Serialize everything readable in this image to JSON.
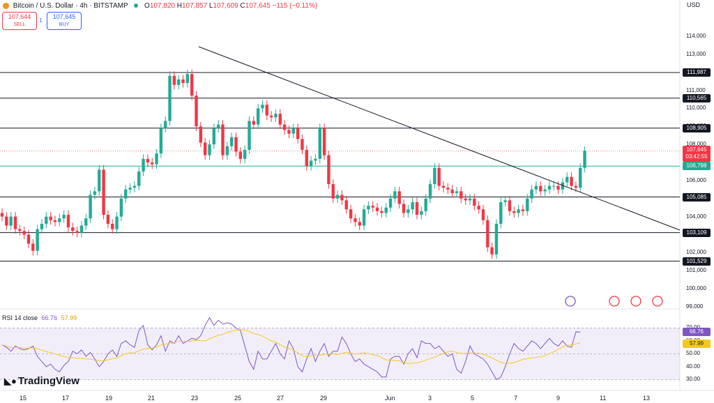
{
  "header": {
    "symbol": "Bitcoin / U.S. Dollar · 4h · BITSTAMP",
    "open_label": "O",
    "open": "107,820",
    "high_label": "H",
    "high": "107,857",
    "low_label": "L",
    "low": "107,609",
    "close_label": "C",
    "close": "107,645",
    "change": "−115 (−0.11%)",
    "currency": "USD"
  },
  "trade": {
    "sell_price": "107,644",
    "sell_label": "SELL",
    "buy_price": "107,645",
    "buy_label": "BUY",
    "spread": "1"
  },
  "rsi": {
    "label": "RSI 14 close",
    "value": "66.76",
    "ma_value": "57.99",
    "current": 66.76,
    "ma": 57.99
  },
  "branding": {
    "logo_text": "TradingView"
  },
  "colors": {
    "up": "#22ab94",
    "down": "#f23645",
    "rsi_line": "#7e57c2",
    "rsi_ma": "#f7c81b",
    "accent": "#2962ff",
    "support_tag": "#22ab94"
  },
  "icons": [
    "bitcoin-icon",
    "market-open-icon",
    "event-icons"
  ],
  "chart_data": {
    "type": "candlestick",
    "symbol": "BTCUSD",
    "timeframe": "4h",
    "ylim": [
      99000,
      115000
    ],
    "y_ticks": [
      {
        "v": 114000,
        "label": "114,000"
      },
      {
        "v": 113000,
        "label": "113,000"
      },
      {
        "v": 112000,
        "label": "112,000"
      },
      {
        "v": 111000,
        "label": "111,000"
      },
      {
        "v": 110000,
        "label": "110,000"
      },
      {
        "v": 109000,
        "label": "109,000"
      },
      {
        "v": 108000,
        "label": "108,000"
      },
      {
        "v": 107000,
        "label": "107,000"
      },
      {
        "v": 106000,
        "label": "106,000"
      },
      {
        "v": 105000,
        "label": "105,000"
      },
      {
        "v": 104000,
        "label": "104,000"
      },
      {
        "v": 103000,
        "label": "103,000"
      },
      {
        "v": 102000,
        "label": "102,000"
      },
      {
        "v": 101000,
        "label": "101,000"
      },
      {
        "v": 100000,
        "label": "100,000"
      },
      {
        "v": 99000,
        "label": "99,000"
      }
    ],
    "x_ticks": [
      "15",
      "17",
      "19",
      "21",
      "23",
      "25",
      "27",
      "29",
      "Jun",
      "3",
      "5",
      "7",
      "9",
      "11",
      "13"
    ],
    "levels": [
      {
        "v": 111987,
        "label": "111,987"
      },
      {
        "v": 110565,
        "label": "110,565"
      },
      {
        "v": 108905,
        "label": "108,905"
      },
      {
        "v": 105085,
        "label": "105,085"
      },
      {
        "v": 103109,
        "label": "103,109"
      },
      {
        "v": 101529,
        "label": "101,529"
      }
    ],
    "support_level": {
      "v": 106798,
      "label": "106,798"
    },
    "last_price": {
      "v": 107645,
      "label": "107,645",
      "countdown": "03:42:55"
    },
    "trendline": [
      [
        "May 22",
        112700
      ],
      [
        "Jun 12",
        103100
      ]
    ],
    "candles_close": [
      104000,
      103500,
      104000,
      103300,
      103200,
      103000,
      102500,
      102100,
      103300,
      103600,
      104000,
      103800,
      103700,
      103900,
      104100,
      103400,
      103200,
      103100,
      103500,
      103900,
      105200,
      105400,
      106600,
      104100,
      103600,
      103300,
      104000,
      105000,
      105500,
      105600,
      105700,
      106500,
      107200,
      107000,
      106900,
      107500,
      108900,
      109300,
      111800,
      111300,
      111600,
      111400,
      111900,
      110700,
      109000,
      108100,
      107400,
      108000,
      108900,
      109100,
      107400,
      107900,
      108400,
      107600,
      107200,
      107700,
      109300,
      109100,
      110000,
      110200,
      109600,
      109500,
      109700,
      109100,
      108800,
      108600,
      108900,
      108300,
      107700,
      106800,
      107100,
      107200,
      108900,
      107400,
      105800,
      105000,
      105200,
      104900,
      104400,
      103900,
      103700,
      103500,
      104400,
      104600,
      104500,
      104300,
      104200,
      104500,
      105000,
      105400,
      104700,
      104200,
      104400,
      104800,
      104100,
      104300,
      105000,
      105800,
      106700,
      105700,
      105600,
      105500,
      105300,
      105400,
      105000,
      104900,
      105000,
      104600,
      104400,
      103800,
      102300,
      101900,
      103600,
      104800,
      104900,
      104300,
      104200,
      104400,
      104300,
      105000,
      105500,
      105700,
      105400,
      105500,
      105700,
      105700,
      105500,
      105900,
      106200,
      105700,
      105600,
      106700,
      107645
    ],
    "rsi_values": [
      57,
      55,
      52,
      56,
      54,
      53,
      54,
      56,
      48,
      44,
      40,
      42,
      38,
      36,
      41,
      44,
      52,
      50,
      53,
      48,
      51,
      46,
      40,
      44,
      50,
      53,
      48,
      58,
      60,
      57,
      55,
      68,
      72,
      57,
      53,
      57,
      64,
      52,
      60,
      58,
      64,
      58,
      60,
      62,
      61,
      64,
      72,
      78,
      72,
      76,
      73,
      74,
      73,
      70,
      68,
      56,
      44,
      38,
      52,
      46,
      46,
      52,
      58,
      50,
      46,
      60,
      54,
      40,
      36,
      46,
      54,
      44,
      52,
      58,
      48,
      52,
      52,
      63,
      58,
      50,
      44,
      46,
      42,
      40,
      38,
      36,
      32,
      32,
      46,
      48,
      48,
      42,
      50,
      54,
      47,
      60,
      58,
      58,
      54,
      56,
      52,
      48,
      50,
      38,
      35,
      44,
      56,
      50,
      48,
      46,
      42,
      36,
      30,
      32,
      40,
      50,
      58,
      54,
      52,
      56,
      60,
      58,
      54,
      58,
      62,
      58,
      56,
      60,
      56,
      55,
      67,
      66.76
    ],
    "rsi_ylim": [
      27,
      74
    ],
    "rsi_ticks": [
      {
        "v": 70,
        "label": "70.00"
      },
      {
        "v": 60,
        "label": "60.00"
      },
      {
        "v": 50,
        "label": "50.00"
      },
      {
        "v": 40,
        "label": "40.00"
      },
      {
        "v": 30,
        "label": "30.00"
      }
    ]
  }
}
